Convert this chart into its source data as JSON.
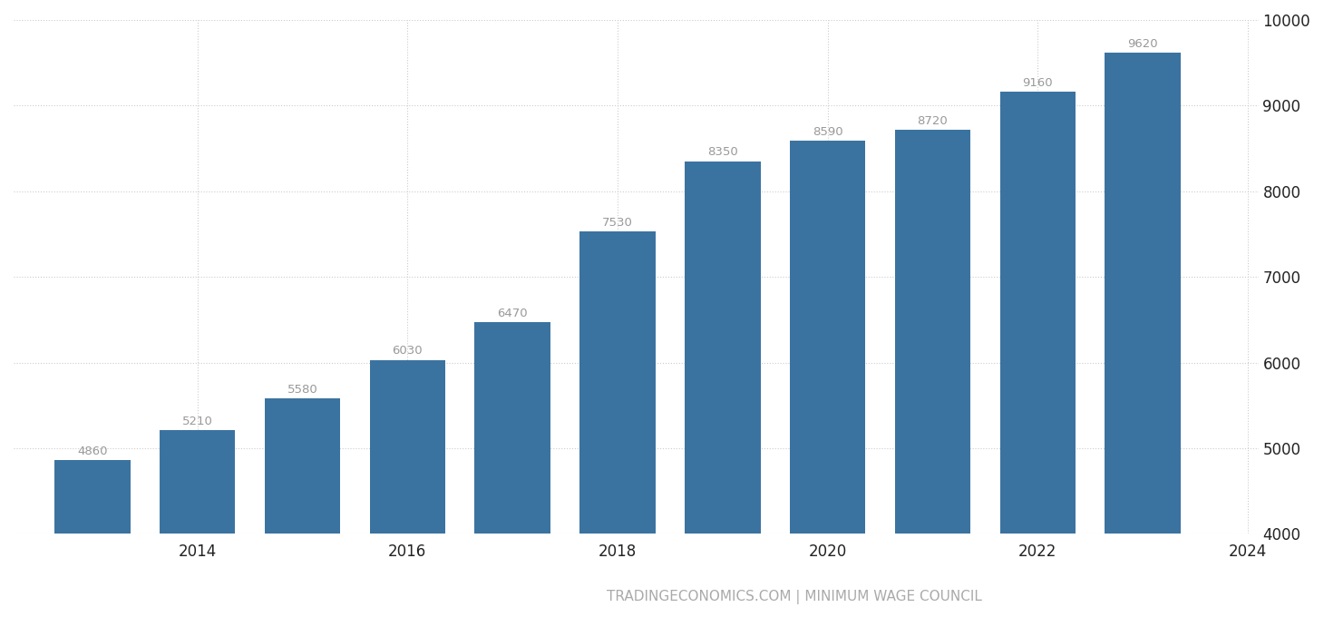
{
  "years": [
    2013,
    2014,
    2015,
    2016,
    2017,
    2018,
    2019,
    2020,
    2021,
    2022,
    2023
  ],
  "values": [
    4860,
    5210,
    5580,
    6030,
    6470,
    7530,
    8350,
    8590,
    8720,
    9160,
    9620
  ],
  "bar_color": "#3b73a0",
  "background_color": "#ffffff",
  "grid_color": "#cccccc",
  "label_color": "#999999",
  "xlabel_tick_color": "#222222",
  "ytick_right_color": "#222222",
  "x_tick_labels": [
    "2014",
    "2016",
    "2018",
    "2020",
    "2022",
    "2024"
  ],
  "x_tick_positions": [
    2014,
    2016,
    2018,
    2020,
    2022,
    2024
  ],
  "ylim": [
    4000,
    10000
  ],
  "yticks": [
    4000,
    5000,
    6000,
    7000,
    8000,
    9000,
    10000
  ],
  "watermark": "TRADINGECONOMICS.COM | MINIMUM WAGE COUNCIL",
  "watermark_color": "#aaaaaa",
  "bar_label_fontsize": 9.5,
  "tick_fontsize": 12,
  "watermark_fontsize": 11,
  "bar_width": 0.72,
  "xlim_left": 2012.25,
  "xlim_right": 2024.1
}
